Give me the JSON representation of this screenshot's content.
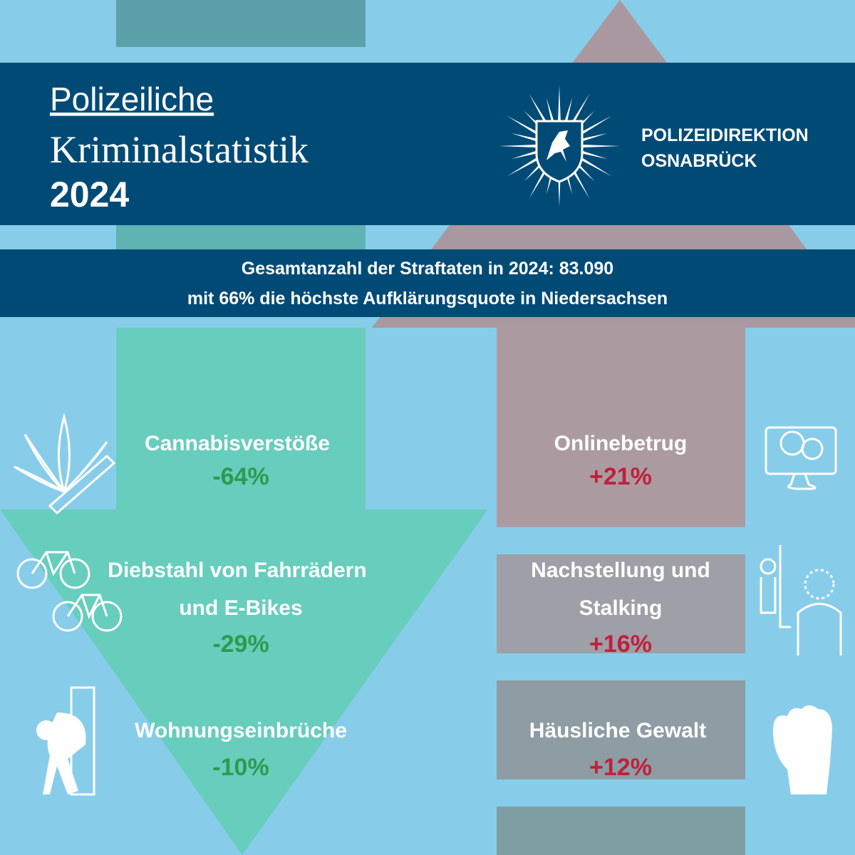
{
  "header": {
    "title_line1": "Polizeiliche",
    "title_line2": "Kriminalstatistik",
    "year": "2024",
    "organization_line1": "POLIZEIDIREKTION",
    "organization_line2": "OSNABRÜCK"
  },
  "banner": {
    "line1": "Gesamtanzahl der Straftaten in 2024: 83.090",
    "line2": "mit 66% die höchste Aufklärungsquote in Niedersachsen"
  },
  "decreases": [
    {
      "label_lines": [
        "Cannabisverstöße"
      ],
      "change": "-64%"
    },
    {
      "label_lines": [
        "Diebstahl von Fahrrädern",
        "und E-Bikes"
      ],
      "change": "-29%"
    },
    {
      "label_lines": [
        "Wohnungseinbrüche"
      ],
      "change": "-10%"
    }
  ],
  "increases": [
    {
      "label_lines": [
        "Onlinebetrug"
      ],
      "change": "+21%"
    },
    {
      "label_lines": [
        "Nachstellung und",
        "Stalking"
      ],
      "change": "+16%"
    },
    {
      "label_lines": [
        "Häusliche Gewalt"
      ],
      "change": "+12%"
    }
  ]
}
